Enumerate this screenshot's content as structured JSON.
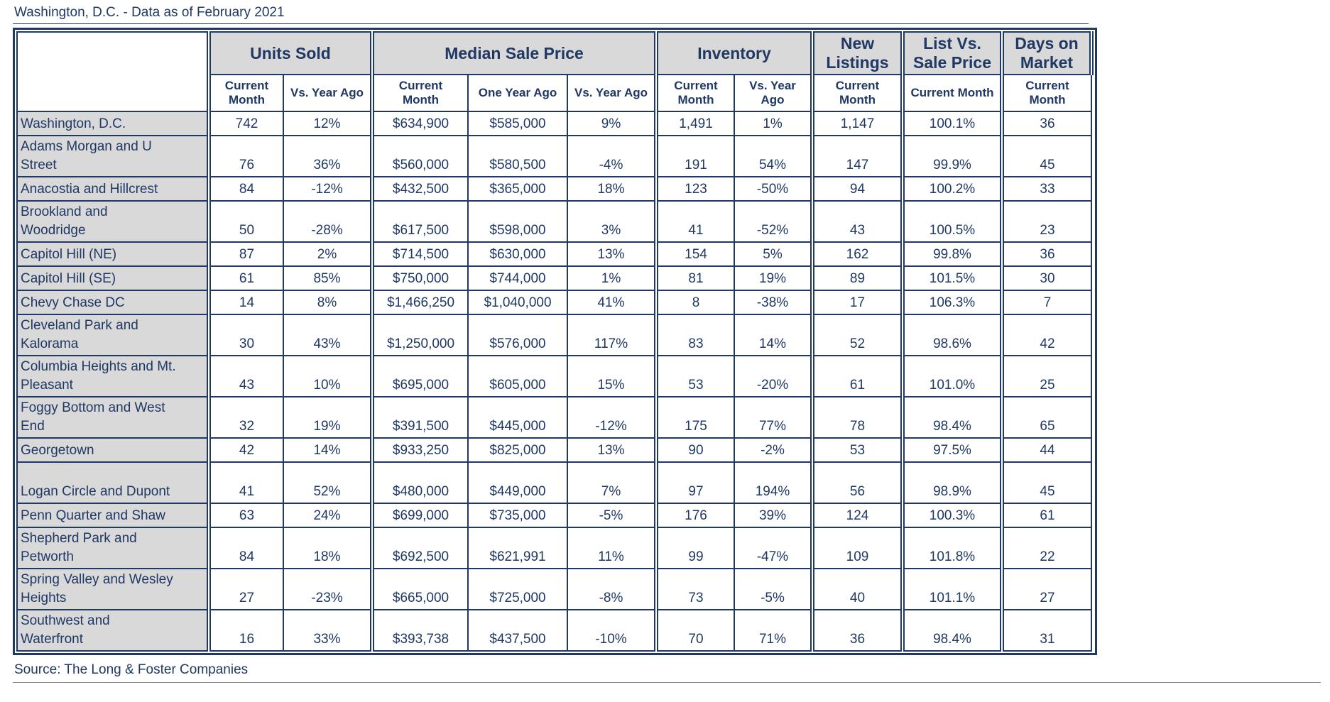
{
  "title": "Washington, D.C. - Data as of February 2021",
  "source": "Source: The Long & Foster Companies",
  "colors": {
    "navy": "#1f3864",
    "header_bg": "#d9d9d9",
    "cell_bg": "#ffffff"
  },
  "table": {
    "groups": [
      {
        "label": "Units Sold",
        "cols": [
          "Current\nMonth",
          "Vs. Year Ago"
        ]
      },
      {
        "label": "Median Sale Price",
        "cols": [
          "Current\nMonth",
          "One Year Ago",
          "Vs. Year Ago"
        ]
      },
      {
        "label": "Inventory",
        "cols": [
          "Current\nMonth",
          "Vs. Year\nAgo"
        ]
      },
      {
        "label": "New\nListings",
        "cols": [
          "Current\nMonth"
        ]
      },
      {
        "label": "List Vs.\nSale Price",
        "cols": [
          "Current Month"
        ]
      },
      {
        "label": "Days on\nMarket",
        "cols": [
          "Current\nMonth"
        ]
      }
    ],
    "rows": [
      {
        "label": "Washington, D.C.",
        "values": [
          "742",
          "12%",
          "$634,900",
          "$585,000",
          "9%",
          "1,491",
          "1%",
          "1,147",
          "100.1%",
          "36"
        ]
      },
      {
        "label": "Adams Morgan and U\nStreet",
        "values": [
          "76",
          "36%",
          "$560,000",
          "$580,500",
          "-4%",
          "191",
          "54%",
          "147",
          "99.9%",
          "45"
        ]
      },
      {
        "label": "Anacostia and Hillcrest",
        "values": [
          "84",
          "-12%",
          "$432,500",
          "$365,000",
          "18%",
          "123",
          "-50%",
          "94",
          "100.2%",
          "33"
        ]
      },
      {
        "label": "Brookland and\nWoodridge",
        "values": [
          "50",
          "-28%",
          "$617,500",
          "$598,000",
          "3%",
          "41",
          "-52%",
          "43",
          "100.5%",
          "23"
        ]
      },
      {
        "label": "Capitol Hill (NE)",
        "values": [
          "87",
          "2%",
          "$714,500",
          "$630,000",
          "13%",
          "154",
          "5%",
          "162",
          "99.8%",
          "36"
        ]
      },
      {
        "label": "Capitol Hill (SE)",
        "values": [
          "61",
          "85%",
          "$750,000",
          "$744,000",
          "1%",
          "81",
          "19%",
          "89",
          "101.5%",
          "30"
        ]
      },
      {
        "label": "Chevy Chase DC",
        "values": [
          "14",
          "8%",
          "$1,466,250",
          "$1,040,000",
          "41%",
          "8",
          "-38%",
          "17",
          "106.3%",
          "7"
        ]
      },
      {
        "label": "Cleveland Park and\nKalorama",
        "values": [
          "30",
          "43%",
          "$1,250,000",
          "$576,000",
          "117%",
          "83",
          "14%",
          "52",
          "98.6%",
          "42"
        ]
      },
      {
        "label": "Columbia Heights and Mt.\nPleasant",
        "values": [
          "43",
          "10%",
          "$695,000",
          "$605,000",
          "15%",
          "53",
          "-20%",
          "61",
          "101.0%",
          "25"
        ]
      },
      {
        "label": "Foggy Bottom and West\nEnd",
        "values": [
          "32",
          "19%",
          "$391,500",
          "$445,000",
          "-12%",
          "175",
          "77%",
          "78",
          "98.4%",
          "65"
        ]
      },
      {
        "label": "Georgetown",
        "values": [
          "42",
          "14%",
          "$933,250",
          "$825,000",
          "13%",
          "90",
          "-2%",
          "53",
          "97.5%",
          "44"
        ]
      },
      {
        "label": "Logan Circle and Dupont",
        "tall": true,
        "values": [
          "41",
          "52%",
          "$480,000",
          "$449,000",
          "7%",
          "97",
          "194%",
          "56",
          "98.9%",
          "45"
        ]
      },
      {
        "label": "Penn Quarter and Shaw",
        "values": [
          "63",
          "24%",
          "$699,000",
          "$735,000",
          "-5%",
          "176",
          "39%",
          "124",
          "100.3%",
          "61"
        ]
      },
      {
        "label": "Shepherd Park and\nPetworth",
        "values": [
          "84",
          "18%",
          "$692,500",
          "$621,991",
          "11%",
          "99",
          "-47%",
          "109",
          "101.8%",
          "22"
        ]
      },
      {
        "label": "Spring Valley and Wesley\nHeights",
        "values": [
          "27",
          "-23%",
          "$665,000",
          "$725,000",
          "-8%",
          "73",
          "-5%",
          "40",
          "101.1%",
          "27"
        ]
      },
      {
        "label": "Southwest and\nWaterfront",
        "values": [
          "16",
          "33%",
          "$393,738",
          "$437,500",
          "-10%",
          "70",
          "71%",
          "36",
          "98.4%",
          "31"
        ]
      }
    ],
    "column_names": [
      "units-sold-current-month",
      "units-sold-vs-year-ago",
      "median-sale-price-current-month",
      "median-sale-price-one-year-ago",
      "median-sale-price-vs-year-ago",
      "inventory-current-month",
      "inventory-vs-year-ago",
      "new-listings-current-month",
      "list-vs-sale-price-current-month",
      "days-on-market-current-month"
    ]
  }
}
